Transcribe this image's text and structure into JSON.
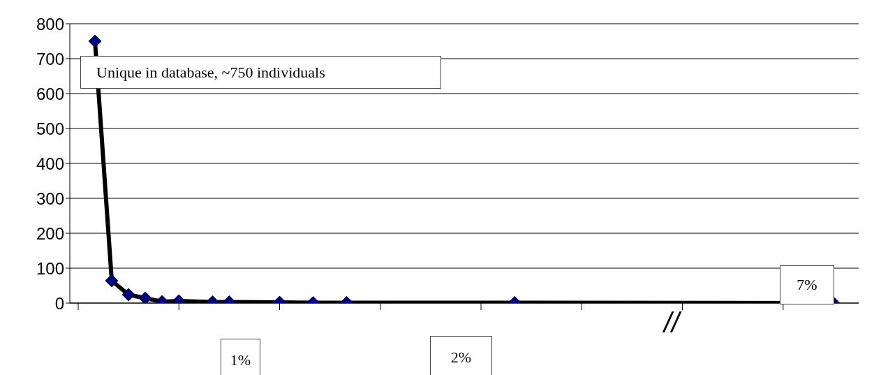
{
  "chart_data": {
    "type": "line",
    "categories": [
      null,
      null,
      null,
      null,
      null,
      null,
      null,
      null,
      null,
      null,
      null,
      null,
      null,
      null,
      null,
      null,
      null,
      null,
      null,
      null,
      null,
      null,
      null,
      null,
      null,
      null,
      null,
      null,
      null,
      null,
      null,
      null,
      null,
      null,
      null,
      null,
      null,
      null,
      null,
      null,
      null,
      null,
      null,
      null,
      null,
      null,
      null
    ],
    "series": [
      {
        "color": "#000000",
        "values": [
          null,
          750,
          64,
          24,
          14,
          4,
          6,
          null,
          3,
          3,
          null,
          null,
          2,
          null,
          1,
          null,
          1,
          null,
          null,
          null,
          null,
          null,
          null,
          null,
          null,
          null,
          1,
          null,
          null,
          null,
          null,
          null,
          null,
          null,
          null,
          null,
          null,
          null,
          null,
          null,
          null,
          null,
          null,
          null,
          null,
          0,
          null
        ]
      }
    ],
    "ylim": [
      0,
      800
    ],
    "yticks": [
      0,
      100,
      200,
      300,
      400,
      500,
      600,
      700,
      800
    ],
    "tick_labels": "y",
    "grid": "y",
    "marker": "diamond",
    "line_style": "solid",
    "annotations": [
      "Unique in database, ~750 individuals",
      "1%",
      "2%",
      "//",
      "7%"
    ]
  }
}
